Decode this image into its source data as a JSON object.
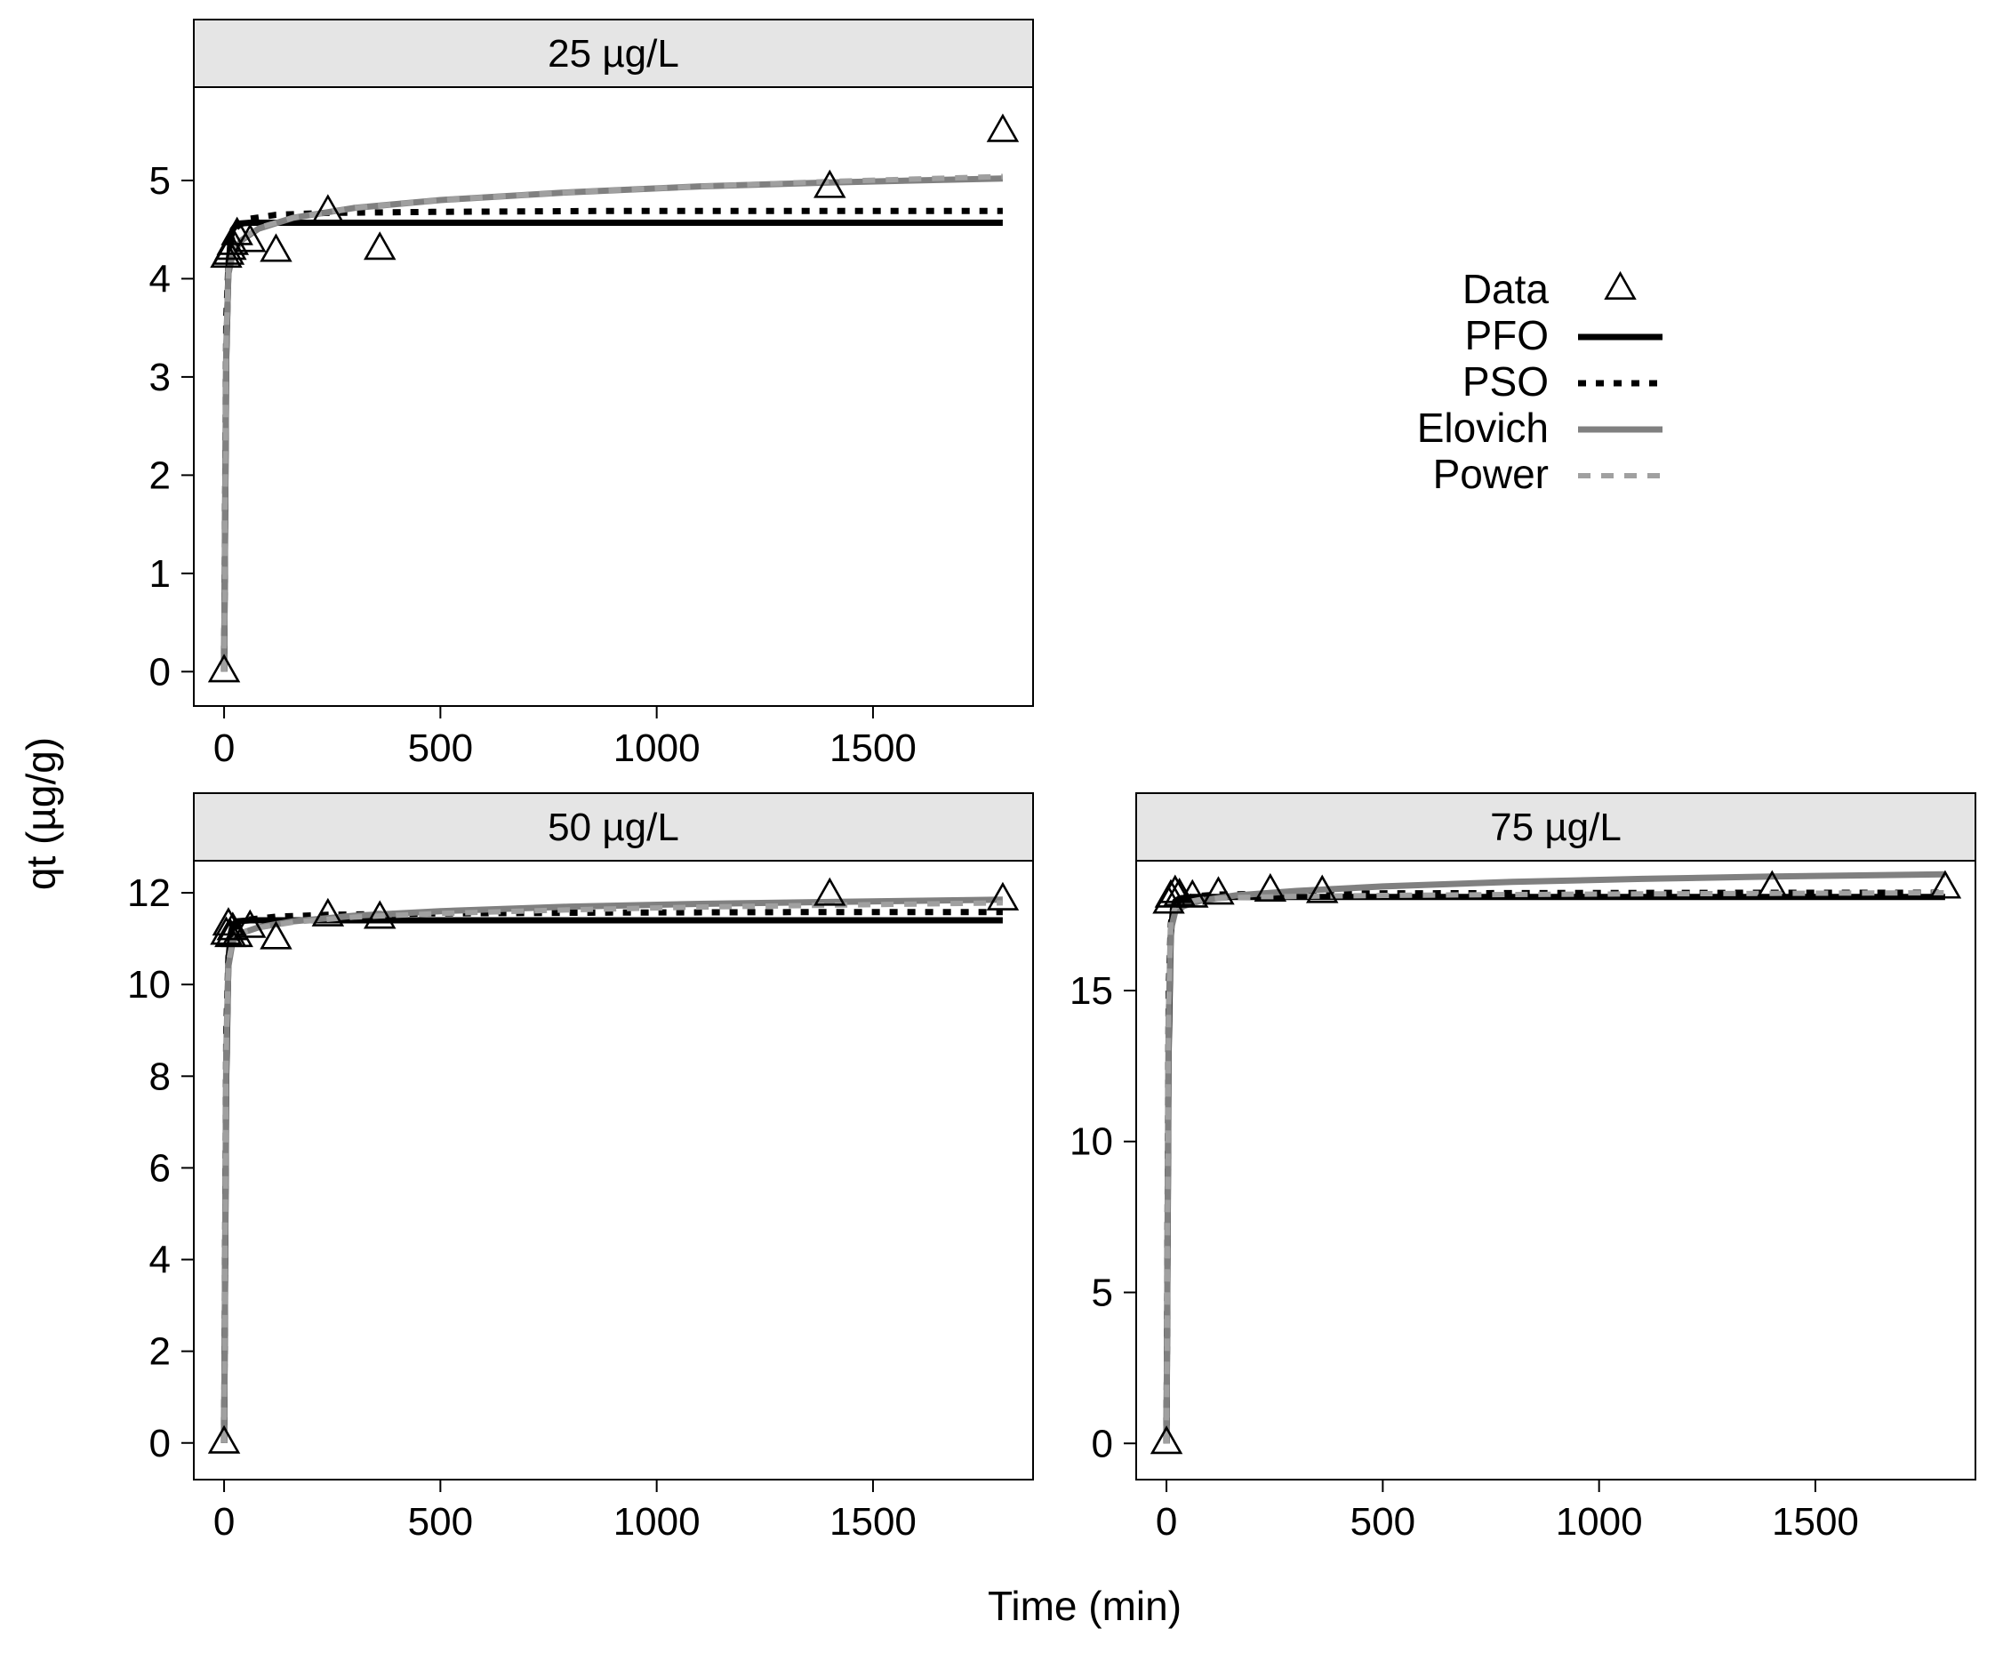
{
  "figure": {
    "xlabel": "Time (min)",
    "ylabel": "qt (µg/g)"
  },
  "legend": {
    "placement": "top-right",
    "entries": [
      {
        "name": "Data",
        "kind": "marker",
        "marker": "open-triangle",
        "color": "#000000"
      },
      {
        "name": "PFO",
        "kind": "line",
        "dash": "solid",
        "color": "#000000"
      },
      {
        "name": "PSO",
        "kind": "line",
        "dash": "dotted",
        "color": "#000000"
      },
      {
        "name": "Elovich",
        "kind": "line",
        "dash": "solid",
        "color": "#808080"
      },
      {
        "name": "Power",
        "kind": "line",
        "dash": "dashed",
        "color": "#a0a0a0"
      }
    ]
  },
  "colors": {
    "strip_background": "#e5e5e5",
    "frame": "#000000",
    "pfo": "#000000",
    "pso": "#000000",
    "elovich": "#808080",
    "power": "#a0a0a0"
  },
  "chart_data": [
    {
      "type": "scatter",
      "panel": "top-left",
      "title": "25 µg/L",
      "xlim": [
        -70,
        1870
      ],
      "ylim": [
        -0.35,
        5.95
      ],
      "xticks": [
        0,
        500,
        1000,
        1500
      ],
      "yticks": [
        0,
        1,
        2,
        3,
        4,
        5
      ],
      "grid": false,
      "points": {
        "x": [
          0,
          5,
          10,
          15,
          20,
          30,
          60,
          120,
          240,
          360,
          1400,
          1800
        ],
        "y": [
          0,
          4.22,
          4.25,
          4.3,
          4.35,
          4.45,
          4.38,
          4.28,
          4.68,
          4.3,
          4.93,
          5.5
        ]
      },
      "series": [
        {
          "name": "PFO",
          "x": [
            0,
            5,
            10,
            15,
            20,
            30,
            60,
            120,
            240,
            480,
            900,
            1400,
            1800
          ],
          "y": [
            0,
            3.2,
            4.1,
            4.4,
            4.5,
            4.56,
            4.57,
            4.57,
            4.57,
            4.57,
            4.57,
            4.57,
            4.57
          ]
        },
        {
          "name": "PSO",
          "x": [
            0,
            5,
            10,
            15,
            20,
            30,
            60,
            120,
            240,
            480,
            900,
            1400,
            1800
          ],
          "y": [
            0,
            3.6,
            4.15,
            4.35,
            4.45,
            4.53,
            4.61,
            4.65,
            4.67,
            4.68,
            4.69,
            4.69,
            4.69
          ]
        },
        {
          "name": "Elovich",
          "x": [
            0,
            5,
            10,
            20,
            40,
            80,
            160,
            300,
            500,
            800,
            1100,
            1400,
            1800
          ],
          "y": [
            0,
            3.3,
            4.05,
            4.25,
            4.39,
            4.51,
            4.62,
            4.72,
            4.8,
            4.88,
            4.94,
            4.98,
            5.02
          ]
        },
        {
          "name": "Power",
          "x": [
            0,
            5,
            10,
            20,
            40,
            80,
            160,
            300,
            500,
            800,
            1100,
            1400,
            1800
          ],
          "y": [
            0,
            3.4,
            4.1,
            4.27,
            4.4,
            4.52,
            4.62,
            4.72,
            4.8,
            4.88,
            4.94,
            4.99,
            5.04
          ]
        }
      ]
    },
    {
      "type": "scatter",
      "panel": "bottom-left",
      "title": "50 µg/L",
      "xlim": [
        -70,
        1870
      ],
      "ylim": [
        -0.8,
        12.7
      ],
      "xticks": [
        0,
        500,
        1000,
        1500
      ],
      "yticks": [
        0,
        2,
        4,
        6,
        8,
        10,
        12
      ],
      "grid": false,
      "points": {
        "x": [
          0,
          5,
          10,
          15,
          20,
          30,
          60,
          120,
          240,
          360,
          1400,
          1800
        ],
        "y": [
          0,
          11.1,
          11.3,
          11.05,
          11.2,
          11.05,
          11.25,
          11.0,
          11.5,
          11.45,
          11.95,
          11.85
        ]
      },
      "series": [
        {
          "name": "PFO",
          "x": [
            0,
            5,
            10,
            15,
            20,
            30,
            60,
            120,
            240,
            480,
            900,
            1400,
            1800
          ],
          "y": [
            0,
            8.0,
            10.5,
            11.1,
            11.3,
            11.38,
            11.4,
            11.4,
            11.4,
            11.4,
            11.4,
            11.4,
            11.4
          ]
        },
        {
          "name": "PSO",
          "x": [
            0,
            5,
            10,
            15,
            20,
            30,
            60,
            120,
            240,
            480,
            900,
            1400,
            1800
          ],
          "y": [
            0,
            9.0,
            10.6,
            11.0,
            11.15,
            11.3,
            11.42,
            11.48,
            11.52,
            11.55,
            11.57,
            11.58,
            11.58
          ]
        },
        {
          "name": "Elovich",
          "x": [
            0,
            5,
            10,
            20,
            40,
            80,
            160,
            300,
            500,
            800,
            1100,
            1400,
            1800
          ],
          "y": [
            0,
            8.5,
            10.4,
            10.95,
            11.12,
            11.25,
            11.38,
            11.5,
            11.6,
            11.7,
            11.76,
            11.8,
            11.85
          ]
        },
        {
          "name": "Power",
          "x": [
            0,
            5,
            10,
            20,
            40,
            80,
            160,
            300,
            500,
            800,
            1100,
            1400,
            1800
          ],
          "y": [
            0,
            8.6,
            10.5,
            10.97,
            11.12,
            11.24,
            11.36,
            11.47,
            11.55,
            11.63,
            11.69,
            11.73,
            11.78
          ]
        }
      ]
    },
    {
      "type": "scatter",
      "panel": "bottom-right",
      "title": "75 µg/L",
      "xlim": [
        -70,
        1870
      ],
      "ylim": [
        -1.2,
        19.3
      ],
      "xticks": [
        0,
        500,
        1000,
        1500
      ],
      "yticks": [
        0,
        5,
        10,
        15
      ],
      "grid": false,
      "points": {
        "x": [
          0,
          5,
          10,
          20,
          30,
          60,
          120,
          240,
          360,
          1400,
          1800
        ],
        "y": [
          0,
          17.9,
          18.1,
          18.25,
          18.15,
          18.1,
          18.2,
          18.3,
          18.25,
          18.4,
          18.4
        ]
      },
      "series": [
        {
          "name": "PFO",
          "x": [
            0,
            5,
            10,
            15,
            20,
            30,
            60,
            120,
            240,
            480,
            900,
            1400,
            1800
          ],
          "y": [
            0,
            13.0,
            16.8,
            17.7,
            17.95,
            18.05,
            18.1,
            18.1,
            18.1,
            18.1,
            18.1,
            18.1,
            18.1
          ]
        },
        {
          "name": "PSO",
          "x": [
            0,
            5,
            10,
            15,
            20,
            30,
            60,
            120,
            240,
            480,
            900,
            1400,
            1800
          ],
          "y": [
            0,
            15.0,
            17.2,
            17.7,
            17.9,
            18.0,
            18.12,
            18.18,
            18.2,
            18.22,
            18.23,
            18.24,
            18.24
          ]
        },
        {
          "name": "Elovich",
          "x": [
            0,
            5,
            10,
            20,
            40,
            80,
            160,
            300,
            500,
            800,
            1100,
            1400,
            1800
          ],
          "y": [
            0,
            14.0,
            17.0,
            17.6,
            17.8,
            17.98,
            18.15,
            18.3,
            18.45,
            18.6,
            18.7,
            18.78,
            18.85
          ]
        },
        {
          "name": "Power",
          "x": [
            0,
            5,
            10,
            20,
            40,
            80,
            160,
            300,
            500,
            800,
            1100,
            1400,
            1800
          ],
          "y": [
            0,
            14.5,
            17.3,
            17.75,
            17.92,
            18.02,
            18.08,
            18.12,
            18.15,
            18.18,
            18.2,
            18.22,
            18.24
          ]
        }
      ]
    }
  ]
}
